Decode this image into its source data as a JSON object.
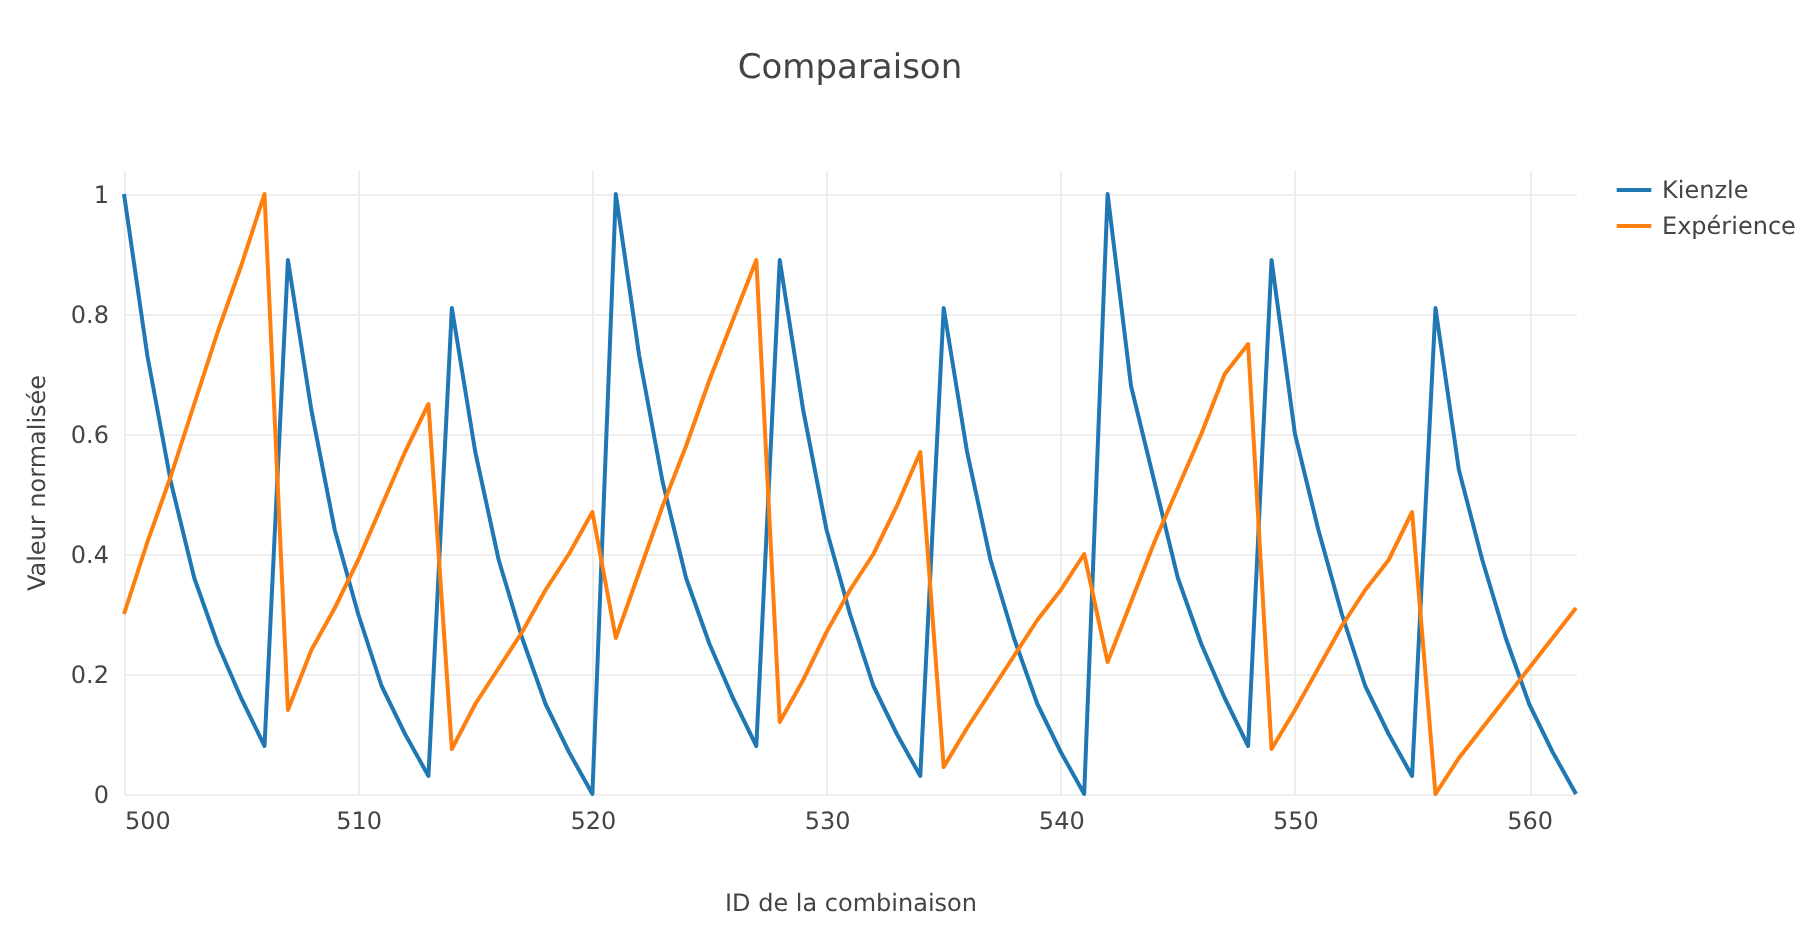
{
  "chart_data": {
    "type": "line",
    "title": "Comparaison",
    "xlabel": "ID de la combinaison",
    "ylabel": "Valeur normalisée",
    "x": [
      500,
      501,
      502,
      503,
      504,
      505,
      506,
      507,
      508,
      509,
      510,
      511,
      512,
      513,
      514,
      515,
      516,
      517,
      518,
      519,
      520,
      521,
      522,
      523,
      524,
      525,
      526,
      527,
      528,
      529,
      530,
      531,
      532,
      533,
      534,
      535,
      536,
      537,
      538,
      539,
      540,
      541,
      542,
      543,
      544,
      545,
      546,
      547,
      548,
      549,
      550,
      551,
      552,
      553,
      554,
      555,
      556,
      557,
      558,
      559,
      560,
      561,
      562
    ],
    "series": [
      {
        "name": "Kienzle",
        "color": "#1f77b4",
        "values": [
          1.0,
          0.73,
          0.52,
          0.36,
          0.25,
          0.16,
          0.08,
          0.89,
          0.64,
          0.44,
          0.3,
          0.18,
          0.1,
          0.03,
          0.81,
          0.57,
          0.39,
          0.26,
          0.15,
          0.07,
          0.0,
          1.0,
          0.73,
          0.52,
          0.36,
          0.25,
          0.16,
          0.08,
          0.89,
          0.64,
          0.44,
          0.3,
          0.18,
          0.1,
          0.03,
          0.81,
          0.57,
          0.39,
          0.26,
          0.15,
          0.07,
          0.0,
          1.0,
          0.68,
          0.52,
          0.36,
          0.25,
          0.16,
          0.08,
          0.89,
          0.6,
          0.44,
          0.3,
          0.18,
          0.1,
          0.03,
          0.81,
          0.54,
          0.39,
          0.26,
          0.15,
          0.07,
          0.0
        ]
      },
      {
        "name": "Expérience",
        "color": "#ff7f0e",
        "values": [
          0.3,
          0.42,
          0.53,
          0.65,
          0.77,
          0.88,
          1.0,
          0.14,
          0.24,
          0.31,
          0.39,
          0.48,
          0.57,
          0.65,
          0.075,
          0.15,
          0.21,
          0.27,
          0.34,
          0.4,
          0.47,
          0.26,
          0.37,
          0.48,
          0.58,
          0.69,
          0.79,
          0.89,
          0.12,
          0.19,
          0.27,
          0.34,
          0.4,
          0.48,
          0.57,
          0.045,
          0.11,
          0.17,
          0.23,
          0.29,
          0.34,
          0.4,
          0.22,
          0.32,
          0.42,
          0.51,
          0.6,
          0.7,
          0.75,
          0.075,
          0.14,
          0.21,
          0.28,
          0.34,
          0.39,
          0.47,
          0.0,
          0.06,
          0.11,
          0.16,
          0.21,
          0.26,
          0.31
        ]
      }
    ],
    "xlim": [
      500,
      562
    ],
    "ylim": [
      0,
      1.04
    ],
    "xticks": [
      500,
      510,
      520,
      530,
      540,
      550,
      560
    ],
    "yticks": [
      0,
      0.2,
      0.4,
      0.6,
      0.8,
      1
    ],
    "grid": true,
    "legend": "top right",
    "line_style": "solid",
    "marker": "none"
  }
}
